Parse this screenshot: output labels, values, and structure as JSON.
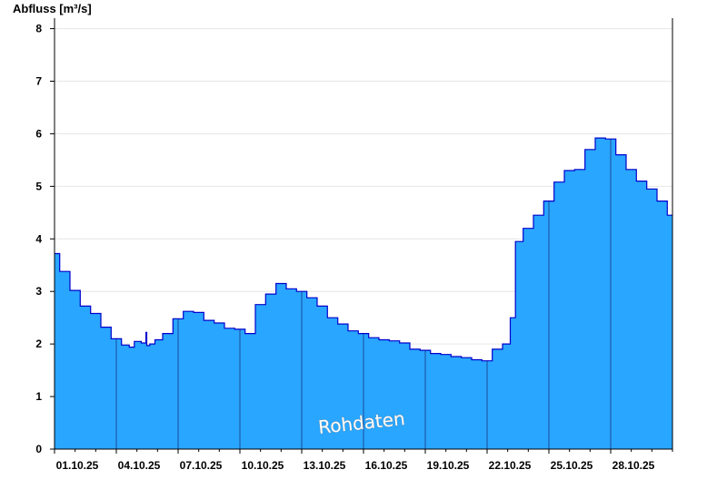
{
  "chart_data": {
    "type": "area",
    "title": "",
    "ylabel": "Abfluss [m³/s]",
    "xlabel": "",
    "ylim": [
      0,
      8.2
    ],
    "yticks": [
      0,
      1,
      2,
      3,
      4,
      5,
      6,
      7,
      8
    ],
    "xlim": [
      "2025-10-01T00:00",
      "2025-10-31T00:00"
    ],
    "xtick_labels": [
      "01.10.25",
      "04.10.25",
      "07.10.25",
      "10.10.25",
      "13.10.25",
      "16.10.25",
      "19.10.25",
      "22.10.25",
      "25.10.25",
      "28.10.25"
    ],
    "grid": true,
    "legend": "none",
    "watermark": "Rohdaten",
    "colors": {
      "fill": "#29a6ff",
      "line": "#0000cc",
      "grid": "#e6e6e6"
    },
    "series": [
      {
        "x": [
          "2025-10-01T00:00",
          "2025-10-01T12:00",
          "2025-10-02T00:00",
          "2025-10-02T12:00",
          "2025-10-03T00:00",
          "2025-10-03T12:00",
          "2025-10-04T00:00",
          "2025-10-04T12:00",
          "2025-10-04T18:00",
          "2025-10-05T00:00",
          "2025-10-05T10:00",
          "2025-10-05T11:00",
          "2025-10-05T12:00",
          "2025-10-05T18:00",
          "2025-10-06T00:00",
          "2025-10-06T12:00",
          "2025-10-07T00:00",
          "2025-10-07T12:00",
          "2025-10-08T00:00",
          "2025-10-08T12:00",
          "2025-10-09T00:00",
          "2025-10-09T12:00",
          "2025-10-10T00:00",
          "2025-10-10T12:00",
          "2025-10-11T00:00",
          "2025-10-11T12:00",
          "2025-10-12T00:00",
          "2025-10-12T12:00",
          "2025-10-13T00:00",
          "2025-10-13T12:00",
          "2025-10-14T00:00",
          "2025-10-14T12:00",
          "2025-10-15T00:00",
          "2025-10-15T12:00",
          "2025-10-16T00:00",
          "2025-10-16T12:00",
          "2025-10-17T00:00",
          "2025-10-17T12:00",
          "2025-10-18T00:00",
          "2025-10-18T12:00",
          "2025-10-19T00:00",
          "2025-10-19T12:00",
          "2025-10-20T00:00",
          "2025-10-20T12:00",
          "2025-10-21T00:00",
          "2025-10-21T12:00",
          "2025-10-22T00:00",
          "2025-10-22T12:00",
          "2025-10-23T00:00",
          "2025-10-23T06:00",
          "2025-10-23T12:00",
          "2025-10-24T00:00",
          "2025-10-24T12:00",
          "2025-10-25T00:00",
          "2025-10-25T12:00",
          "2025-10-26T00:00",
          "2025-10-26T12:00",
          "2025-10-27T00:00",
          "2025-10-27T12:00",
          "2025-10-28T00:00",
          "2025-10-28T12:00",
          "2025-10-29T00:00",
          "2025-10-29T12:00",
          "2025-10-30T00:00",
          "2025-10-30T12:00",
          "2025-10-31T00:00"
        ],
        "y": [
          3.72,
          3.38,
          3.02,
          2.72,
          2.58,
          2.32,
          2.1,
          1.98,
          1.94,
          2.05,
          2.02,
          2.22,
          1.97,
          2.0,
          2.08,
          2.2,
          2.48,
          2.62,
          2.6,
          2.45,
          2.4,
          2.3,
          2.28,
          2.2,
          2.75,
          2.95,
          3.15,
          3.05,
          3.0,
          2.88,
          2.72,
          2.5,
          2.38,
          2.25,
          2.2,
          2.12,
          2.08,
          2.06,
          2.02,
          1.9,
          1.88,
          1.82,
          1.8,
          1.76,
          1.74,
          1.7,
          1.68,
          1.9,
          2.0,
          2.5,
          3.95,
          4.2,
          4.45,
          4.72,
          5.08,
          5.3,
          5.32,
          5.7,
          5.92,
          5.9,
          5.6,
          5.32,
          5.1,
          4.95,
          4.72,
          4.45
        ]
      }
    ]
  }
}
